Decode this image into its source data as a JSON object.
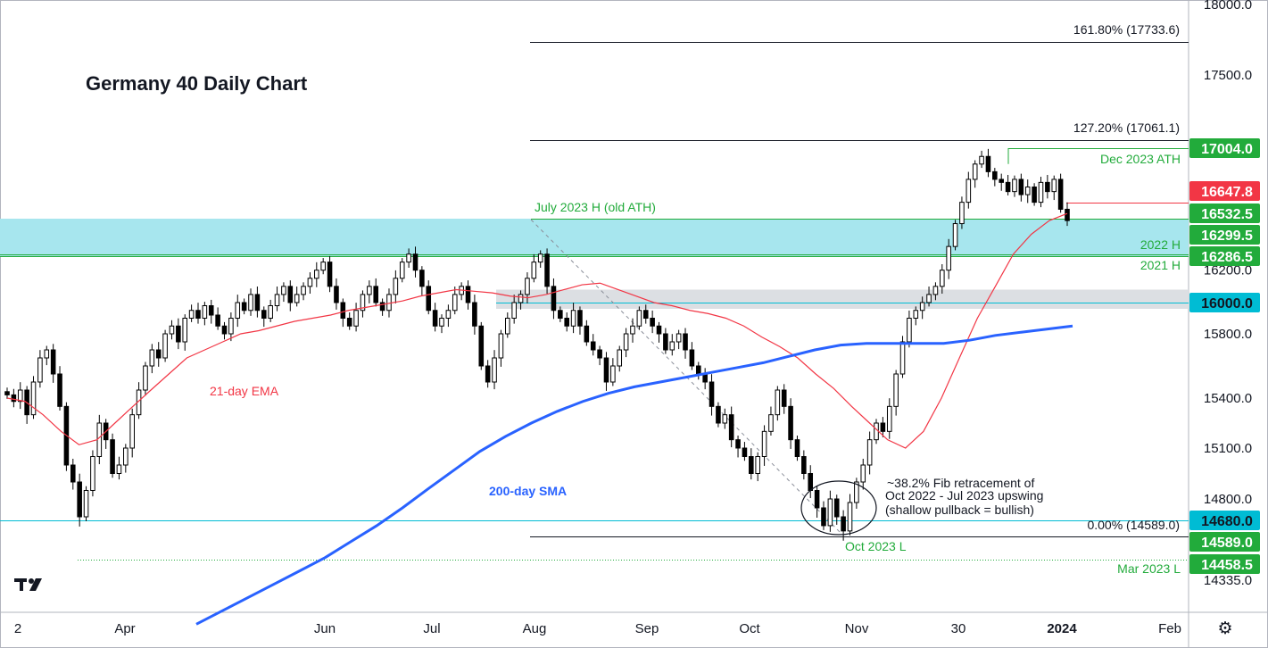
{
  "chart_data": {
    "type": "candlestick",
    "title": "Germany 40 Daily Chart",
    "y_axis": {
      "ticks": [
        14335.0,
        14800.0,
        15100.0,
        15400.0,
        15800.0,
        16200.0,
        17500.0,
        18000.0
      ],
      "tick_labels": [
        "14335.0",
        "14800.0",
        "15100.0",
        "15400.0",
        "15800.0",
        "16200.0",
        "17500.0",
        "18000.0"
      ],
      "ylim": [
        14100,
        18000
      ]
    },
    "x_axis": {
      "tick_labels": [
        "2",
        "Apr",
        "Jun",
        "Jul",
        "Aug",
        "Sep",
        "Oct",
        "Nov",
        "30",
        "2024",
        "Feb"
      ]
    },
    "approx_closes": [
      15420,
      15380,
      15450,
      15300,
      15500,
      15650,
      15700,
      15550,
      15350,
      15000,
      14900,
      14700,
      14850,
      15050,
      15250,
      15150,
      14950,
      15000,
      15100,
      15300,
      15450,
      15600,
      15700,
      15650,
      15800,
      15850,
      15750,
      15900,
      15950,
      15900,
      15980,
      15920,
      15850,
      15800,
      15900,
      16000,
      15950,
      16050,
      15950,
      15900,
      15980,
      16050,
      16100,
      16000,
      16050,
      16100,
      16150,
      16200,
      16250,
      16100,
      16000,
      15900,
      15850,
      15950,
      16050,
      16100,
      16000,
      15950,
      16050,
      16150,
      16250,
      16300,
      16200,
      16100,
      15950,
      15850,
      15900,
      15950,
      16050,
      16100,
      16000,
      15850,
      15600,
      15500,
      15650,
      15800,
      15900,
      16000,
      16050,
      16150,
      16250,
      16300,
      16100,
      15950,
      15900,
      15850,
      15950,
      15850,
      15750,
      15700,
      15650,
      15500,
      15600,
      15700,
      15800,
      15850,
      15950,
      15900,
      15850,
      15800,
      15700,
      15750,
      15800,
      15700,
      15600,
      15550,
      15500,
      15350,
      15250,
      15300,
      15150,
      15100,
      15050,
      14950,
      15050,
      15200,
      15300,
      15450,
      15350,
      15150,
      15050,
      14950,
      14850,
      14750,
      14650,
      14800,
      14700,
      14620,
      14780,
      14900,
      15000,
      15150,
      15250,
      15200,
      15350,
      15550,
      15750,
      15900,
      15950,
      16000,
      16050,
      16100,
      16200,
      16350,
      16500,
      16650,
      16800,
      16900,
      16950,
      16850,
      16800,
      16780,
      16720,
      16800,
      16700,
      16750,
      16650,
      16780,
      16720,
      16800,
      16600,
      16520
    ],
    "series": [
      {
        "name": "21-day EMA",
        "color": "#f23645",
        "values": [
          15400,
          15380,
          15300,
          15200,
          15120,
          15150,
          15250,
          15350,
          15450,
          15550,
          15650,
          15700,
          15750,
          15800,
          15820,
          15850,
          15880,
          15900,
          15920,
          15950,
          15970,
          15990,
          16010,
          16040,
          16060,
          16080,
          16070,
          16060,
          16040,
          16030,
          16050,
          16080,
          16110,
          16120,
          16080,
          16040,
          16000,
          15980,
          15950,
          15930,
          15900,
          15850,
          15780,
          15720,
          15650,
          15550,
          15460,
          15350,
          15250,
          15150,
          15100,
          15200,
          15400,
          15650,
          15900,
          16100,
          16300,
          16430,
          16520,
          16570
        ]
      },
      {
        "name": "200-day SMA",
        "color": "#2962ff",
        "values": [
          14070,
          14150,
          14230,
          14310,
          14390,
          14470,
          14560,
          14650,
          14750,
          14860,
          14970,
          15080,
          15170,
          15250,
          15320,
          15380,
          15430,
          15470,
          15500,
          15530,
          15560,
          15590,
          15620,
          15660,
          15700,
          15730,
          15740,
          15740,
          15740,
          15740,
          15760,
          15790,
          15810,
          15830,
          15850
        ]
      }
    ],
    "horizontal_levels": [
      {
        "value": 17733.6,
        "label": "161.80% (17733.6)"
      },
      {
        "value": 17061.1,
        "label": "127.20% (17061.1)"
      },
      {
        "value": 17004.0,
        "label": "Dec 2023 ATH"
      },
      {
        "value": 16532.5,
        "label": "July 2023 H (old ATH)"
      },
      {
        "value": 16299.5,
        "label": "2022 H"
      },
      {
        "value": 16286.5,
        "label": "2021 H"
      },
      {
        "value": 16000.0,
        "label": ""
      },
      {
        "value": 14680.0,
        "label": ""
      },
      {
        "value": 14589.0,
        "label": "0.00% (14589.0)"
      },
      {
        "value": 14458.5,
        "label": "Mar 2023 L"
      }
    ],
    "price_tags": [
      {
        "value": "17004.0",
        "price": 17004.0,
        "bg": "#22ab3b",
        "fg": "#ffffff"
      },
      {
        "value": "16647.8",
        "price": 16647.8,
        "bg": "#f23645",
        "fg": "#ffffff"
      },
      {
        "value": "16532.5",
        "price": 16532.5,
        "bg": "#22ab3b",
        "fg": "#ffffff"
      },
      {
        "value": "16299.5",
        "price": 16299.5,
        "bg": "#22ab3b",
        "fg": "#ffffff"
      },
      {
        "value": "16286.5",
        "price": 16286.5,
        "bg": "#22ab3b",
        "fg": "#ffffff"
      },
      {
        "value": "16000.0",
        "price": 16000.0,
        "bg": "#00bcd4",
        "fg": "#131722"
      },
      {
        "value": "14680.0",
        "price": 14680.0,
        "bg": "#00bcd4",
        "fg": "#131722"
      },
      {
        "value": "14589.0",
        "price": 14589.0,
        "bg": "#22ab3b",
        "fg": "#ffffff"
      },
      {
        "value": "14458.5",
        "price": 14458.5,
        "bg": "#22ab3b",
        "fg": "#ffffff"
      }
    ],
    "annotations": {
      "ema_label": "21-day EMA",
      "sma_label": "200-day SMA",
      "oct_low": "Oct 2023 L",
      "fib_note": [
        "~38.2% Fib retracement of",
        "Oct 2022 - Jul 2023 upswing",
        "(shallow pullback = bullish)"
      ]
    },
    "zones": [
      {
        "from": 16286.5,
        "to": 16532.5,
        "color": "#a7e6ee"
      },
      {
        "from": 15960,
        "to": 16080,
        "color": "#dcdfe3"
      }
    ],
    "colors": {
      "up": "#ffffff",
      "down": "#000000",
      "wick": "#000000",
      "accent_green": "#22ab3b",
      "accent_red": "#f23645",
      "accent_blue": "#2962ff"
    }
  },
  "ui": {
    "logo": "17",
    "settings_icon": "gear-icon"
  }
}
